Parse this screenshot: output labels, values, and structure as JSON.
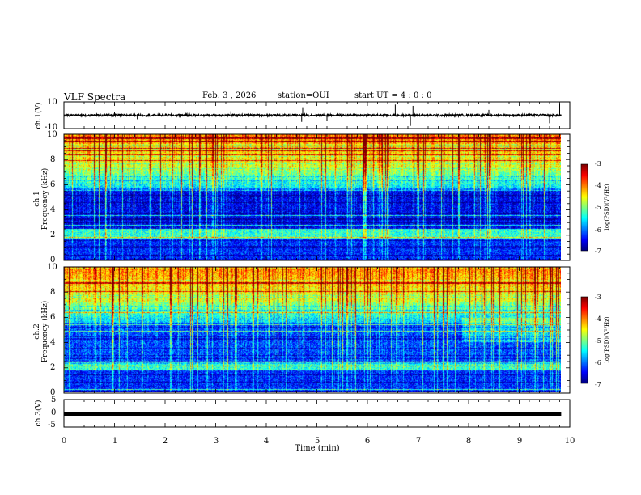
{
  "header": {
    "title": "VLF Spectra",
    "date": "Feb. 3 , 2026",
    "station": "station=OUI",
    "start": "start UT =  4 : 0 : 0"
  },
  "panels": {
    "ch1_wave_label": "ch.1(V)",
    "ch1_spec_label": "ch.1\nFrequency (kHz)",
    "ch2_spec_label": "ch.2\nFrequency (kHz)",
    "ch3_wave_label": "ch.3(V)"
  },
  "colorbar": {
    "label": "log(PSD)(V²/Hz)",
    "ticks": [
      "-3",
      "-4",
      "-5",
      "-6",
      "-7"
    ]
  },
  "chart_data": [
    {
      "type": "line",
      "name": "ch.1 waveform",
      "ylabel": "ch.1(V)",
      "ylim": [
        -10,
        10
      ],
      "yticks": [
        "10",
        "-10"
      ],
      "baseline": 0,
      "spikes": [
        {
          "t": 1.0,
          "v": 2.5
        },
        {
          "t": 1.45,
          "v": -3
        },
        {
          "t": 3.3,
          "v": 3
        },
        {
          "t": 4.7,
          "v": -5
        },
        {
          "t": 4.72,
          "v": 6
        },
        {
          "t": 5.2,
          "v": -4
        },
        {
          "t": 6.55,
          "v": 8
        },
        {
          "t": 6.85,
          "v": -8
        },
        {
          "t": 6.9,
          "v": 7
        },
        {
          "t": 8.4,
          "v": 4
        },
        {
          "t": 9.6,
          "v": -6
        },
        {
          "t": 9.8,
          "v": 9
        }
      ]
    },
    {
      "type": "heatmap",
      "name": "ch.1 spectrogram",
      "ylabel": "Frequency (kHz)",
      "ylim": [
        0,
        10
      ],
      "yticks": [
        "0",
        "2",
        "4",
        "6",
        "8",
        "10"
      ],
      "zlim": [
        -7,
        -3
      ]
    },
    {
      "type": "heatmap",
      "name": "ch.2 spectrogram",
      "ylabel": "Frequency (kHz)",
      "ylim": [
        0,
        10
      ],
      "yticks": [
        "0",
        "2",
        "4",
        "6",
        "8",
        "10"
      ],
      "zlim": [
        -7,
        -3
      ]
    },
    {
      "type": "line",
      "name": "ch.3 waveform",
      "ylabel": "ch.3(V)",
      "ylim": [
        -5,
        5
      ],
      "yticks": [
        "5",
        "0",
        "-5"
      ],
      "constant_value": -0.3
    }
  ],
  "xaxis": {
    "label": "Time (min)",
    "xlim": [
      0,
      10
    ],
    "data_end": 9.83,
    "ticks": [
      "0",
      "1",
      "2",
      "3",
      "4",
      "5",
      "6",
      "7",
      "8",
      "9",
      "10"
    ]
  }
}
